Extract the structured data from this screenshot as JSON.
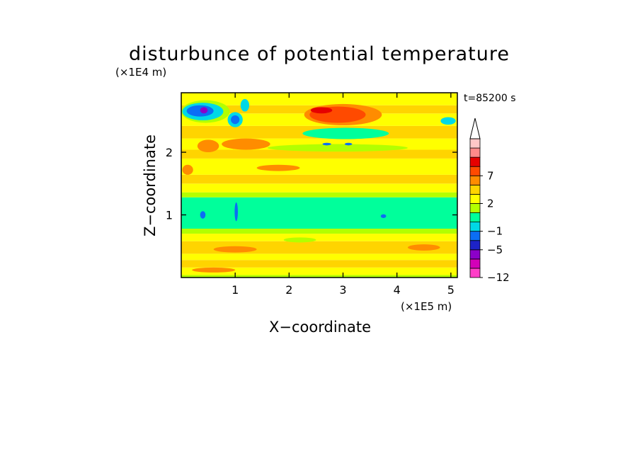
{
  "chart_data": {
    "type": "heatmap",
    "title": "disturbunce of potential temperature",
    "time_label": "t=85200 s",
    "xlabel": "X−coordinate",
    "ylabel": "Z−coordinate",
    "x_unit": "(×1E5 m)",
    "y_unit": "(×1E4 m)",
    "xlim": [
      0,
      5.12
    ],
    "ylim": [
      0,
      2.95
    ],
    "x_ticks": [
      1,
      2,
      3,
      4,
      5
    ],
    "y_ticks": [
      1,
      2
    ],
    "x_tick_labels": [
      "1",
      "2",
      "3",
      "4",
      "5"
    ],
    "y_tick_labels": [
      "1",
      "2"
    ],
    "colorbar": {
      "levels": [
        -12,
        -9,
        -7,
        -5,
        -3,
        -1,
        0,
        1,
        2,
        3,
        5,
        7,
        9,
        12
      ],
      "colors": [
        "#ff3ec8",
        "#d300b8",
        "#8c00c8",
        "#1d23c8",
        "#0b6ef5",
        "#00d8e6",
        "#00ff9b",
        "#b3ff00",
        "#ffff00",
        "#ffd400",
        "#ff8c00",
        "#ff4a00",
        "#e60000",
        "#ff8a8a",
        "#ffc8c8"
      ],
      "tick_labels": [
        "7",
        "2",
        "−1",
        "−5",
        "−12"
      ],
      "tick_values": [
        7,
        2,
        -1,
        -5,
        -12
      ],
      "extend": "max"
    },
    "bands": [
      {
        "z0": 0.0,
        "z1": 0.04,
        "value": 0.5
      },
      {
        "z0": 0.04,
        "z1": 0.16,
        "value": 1.5
      },
      {
        "z0": 0.16,
        "z1": 0.28,
        "value": 2.5
      },
      {
        "z0": 0.28,
        "z1": 0.38,
        "value": 1.5
      },
      {
        "z0": 0.38,
        "z1": 0.58,
        "value": 2.5
      },
      {
        "z0": 0.58,
        "z1": 0.7,
        "value": 1.5
      },
      {
        "z0": 0.7,
        "z1": 0.78,
        "value": 0.5
      },
      {
        "z0": 0.78,
        "z1": 1.28,
        "value": -0.5
      },
      {
        "z0": 1.28,
        "z1": 1.36,
        "value": 0.5
      },
      {
        "z0": 1.36,
        "z1": 1.5,
        "value": 1.5
      },
      {
        "z0": 1.5,
        "z1": 1.64,
        "value": 2.5
      },
      {
        "z0": 1.64,
        "z1": 1.9,
        "value": 1.5
      },
      {
        "z0": 1.9,
        "z1": 2.04,
        "value": 2.5
      },
      {
        "z0": 2.04,
        "z1": 2.22,
        "value": 1.5
      },
      {
        "z0": 2.22,
        "z1": 2.42,
        "value": 2.5
      },
      {
        "z0": 2.42,
        "z1": 2.62,
        "value": 1.5
      },
      {
        "z0": 2.62,
        "z1": 2.75,
        "value": 2.5
      },
      {
        "z0": 2.75,
        "z1": 2.95,
        "value": 1.5
      }
    ],
    "features": [
      {
        "x": 0.45,
        "z": 2.65,
        "rx": 0.45,
        "rz": 0.18,
        "value": 0.5
      },
      {
        "x": 0.4,
        "z": 2.65,
        "rx": 0.38,
        "rz": 0.14,
        "value": -2
      },
      {
        "x": 0.35,
        "z": 2.66,
        "rx": 0.25,
        "rz": 0.09,
        "value": -4
      },
      {
        "x": 0.42,
        "z": 2.67,
        "rx": 0.07,
        "rz": 0.05,
        "value": -8
      },
      {
        "x": 1.0,
        "z": 2.52,
        "rx": 0.14,
        "rz": 0.12,
        "value": -2
      },
      {
        "x": 1.0,
        "z": 2.52,
        "rx": 0.08,
        "rz": 0.07,
        "value": -4
      },
      {
        "x": 1.18,
        "z": 2.75,
        "rx": 0.08,
        "rz": 0.1,
        "value": -2
      },
      {
        "x": 4.95,
        "z": 2.5,
        "rx": 0.14,
        "rz": 0.06,
        "value": -2
      },
      {
        "x": 3.0,
        "z": 2.6,
        "rx": 0.72,
        "rz": 0.17,
        "value": 4
      },
      {
        "x": 2.9,
        "z": 2.6,
        "rx": 0.52,
        "rz": 0.13,
        "value": 6
      },
      {
        "x": 2.6,
        "z": 2.67,
        "rx": 0.2,
        "rz": 0.05,
        "value": 8
      },
      {
        "x": 3.05,
        "z": 2.3,
        "rx": 0.8,
        "rz": 0.09,
        "value": -0.5
      },
      {
        "x": 2.9,
        "z": 2.07,
        "rx": 1.3,
        "rz": 0.06,
        "value": 0.5
      },
      {
        "x": 2.7,
        "z": 2.13,
        "rx": 0.08,
        "rz": 0.02,
        "value": -4
      },
      {
        "x": 3.1,
        "z": 2.13,
        "rx": 0.07,
        "rz": 0.02,
        "value": -4
      },
      {
        "x": 1.2,
        "z": 2.13,
        "rx": 0.45,
        "rz": 0.09,
        "value": 4
      },
      {
        "x": 0.5,
        "z": 2.1,
        "rx": 0.2,
        "rz": 0.1,
        "value": 4
      },
      {
        "x": 1.8,
        "z": 1.75,
        "rx": 0.4,
        "rz": 0.05,
        "value": 4
      },
      {
        "x": 0.12,
        "z": 1.72,
        "rx": 0.1,
        "rz": 0.08,
        "value": 4
      },
      {
        "x": 0.4,
        "z": 1.0,
        "rx": 0.05,
        "rz": 0.06,
        "value": -4
      },
      {
        "x": 1.02,
        "z": 1.05,
        "rx": 0.03,
        "rz": 0.15,
        "value": -4
      },
      {
        "x": 3.75,
        "z": 0.98,
        "rx": 0.05,
        "rz": 0.03,
        "value": -4
      },
      {
        "x": 1.0,
        "z": 0.45,
        "rx": 0.4,
        "rz": 0.05,
        "value": 4
      },
      {
        "x": 4.5,
        "z": 0.48,
        "rx": 0.3,
        "rz": 0.05,
        "value": 4
      },
      {
        "x": 0.6,
        "z": 0.12,
        "rx": 0.4,
        "rz": 0.04,
        "value": 4
      },
      {
        "x": 2.2,
        "z": 0.6,
        "rx": 0.3,
        "rz": 0.04,
        "value": 0.5
      }
    ]
  }
}
